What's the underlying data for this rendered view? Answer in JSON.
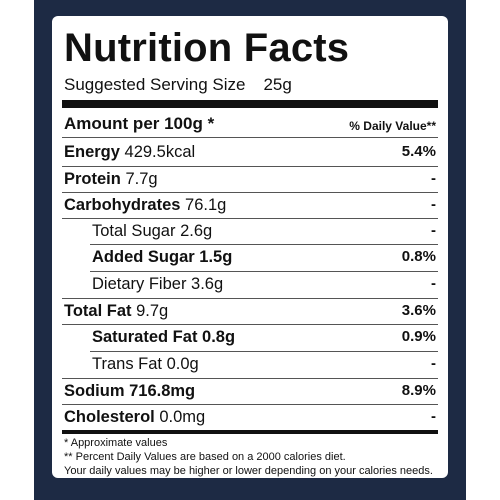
{
  "title": "Nutrition Facts",
  "serving": {
    "label": "Suggested Serving Size",
    "value": "25g"
  },
  "header": {
    "amount_label": "Amount per 100g *",
    "dv_label": "% Daily Value**"
  },
  "nutrients": [
    {
      "label": "Energy",
      "amount": "429.5kcal",
      "dv": "5.4%"
    },
    {
      "label": "Protein",
      "amount": "7.7g",
      "dv": "-"
    },
    {
      "label": "Carbohydrates",
      "amount": "76.1g",
      "dv": "-"
    },
    {
      "label": "Total Sugar",
      "amount": "2.6g",
      "dv": "-"
    },
    {
      "label": "Added Sugar",
      "amount": "1.5g",
      "dv": "0.8%"
    },
    {
      "label": "Dietary Fiber",
      "amount": "3.6g",
      "dv": "-"
    },
    {
      "label": "Total Fat",
      "amount": "9.7g",
      "dv": "3.6%"
    },
    {
      "label": "Saturated Fat",
      "amount": "0.8g",
      "dv": "0.9%"
    },
    {
      "label": "Trans Fat",
      "amount": "0.0g",
      "dv": "-"
    },
    {
      "label": "Sodium",
      "amount": "716.8mg",
      "dv": "8.9%"
    },
    {
      "label": "Cholesterol",
      "amount": "0.0mg",
      "dv": "-"
    }
  ],
  "footnotes": [
    "* Approximate values",
    "** Percent Daily Values are based on a 2000 calories diet.",
    "Your daily values may be higher or lower depending on your calories needs."
  ]
}
